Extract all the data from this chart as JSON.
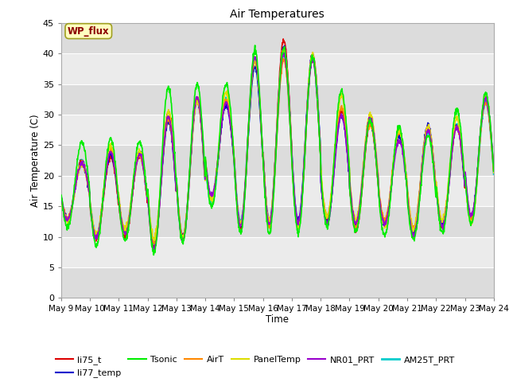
{
  "title": "Air Temperatures",
  "xlabel": "Time",
  "ylabel": "Air Temperature (C)",
  "ylim": [
    0,
    45
  ],
  "yticks": [
    0,
    5,
    10,
    15,
    20,
    25,
    30,
    35,
    40,
    45
  ],
  "x_tick_labels": [
    "May 9",
    "May 10",
    "May 11",
    "May 12",
    "May 13",
    "May 14",
    "May 15",
    "May 16",
    "May 17",
    "May 18",
    "May 19",
    "May 20",
    "May 21",
    "May 22",
    "May 23",
    "May 24"
  ],
  "annotation_text": "WP_flux",
  "annotation_color": "#8B0000",
  "annotation_bg": "#FFFFC0",
  "annotation_border": "#A0A020",
  "series_order": [
    "AM25T_PRT",
    "li75_t",
    "li77_temp",
    "AirT",
    "PanelTemp",
    "NR01_PRT",
    "Tsonic"
  ],
  "series": {
    "li75_t": {
      "color": "#DD0000",
      "lw": 1.2,
      "zorder": 5
    },
    "li77_temp": {
      "color": "#0000CC",
      "lw": 1.2,
      "zorder": 5
    },
    "Tsonic": {
      "color": "#00EE00",
      "lw": 1.2,
      "zorder": 6
    },
    "AirT": {
      "color": "#FF8800",
      "lw": 1.2,
      "zorder": 5
    },
    "PanelTemp": {
      "color": "#DDDD00",
      "lw": 1.2,
      "zorder": 5
    },
    "NR01_PRT": {
      "color": "#9900CC",
      "lw": 1.2,
      "zorder": 5
    },
    "AM25T_PRT": {
      "color": "#00CCCC",
      "lw": 1.5,
      "zorder": 4
    }
  },
  "band_colors": [
    "#DCDCDC",
    "#EBEBEB"
  ],
  "n_days": 15,
  "pts_per_day": 96,
  "day_maxes_base": [
    22,
    24,
    23.5,
    29.5,
    32.5,
    32,
    38.5,
    40.5,
    39.5,
    31,
    28.5,
    27,
    27.5,
    28,
    32
  ],
  "day_mins_base": [
    13,
    10,
    11,
    9,
    10,
    16,
    12,
    12,
    12,
    13,
    12,
    12,
    11,
    12,
    13
  ],
  "tsonic_extra": [
    3.5,
    2,
    2,
    5,
    2.5,
    3,
    2,
    0.3,
    0,
    3,
    0.5,
    1,
    -1,
    3,
    1.5
  ]
}
